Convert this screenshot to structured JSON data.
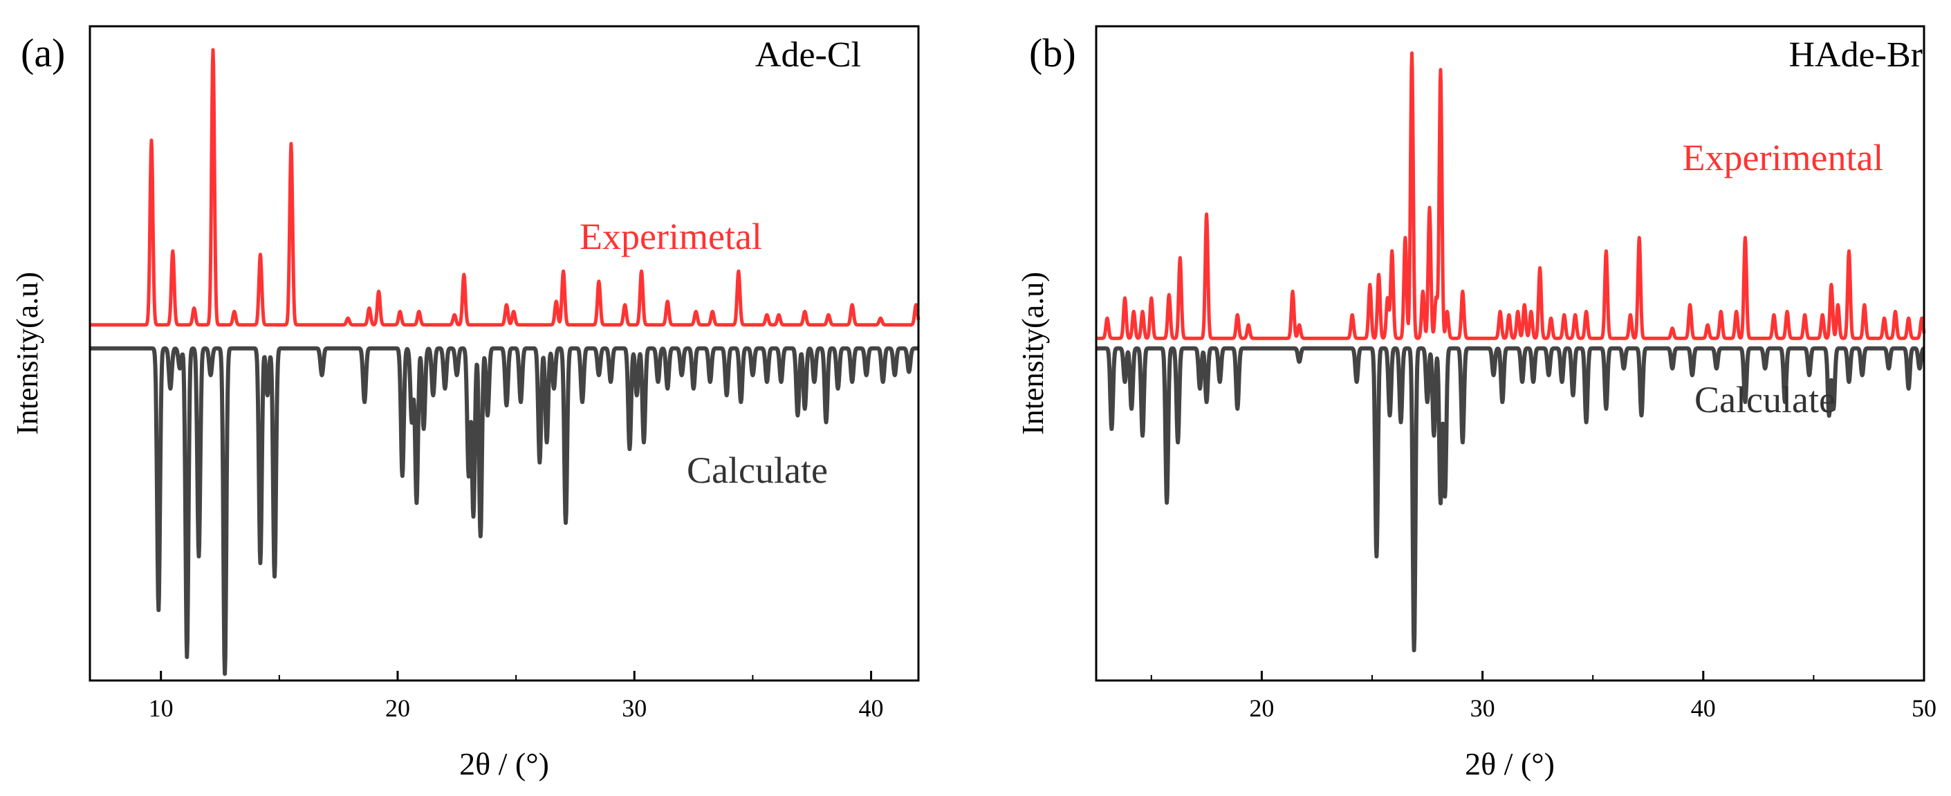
{
  "figure": {
    "panel_count": 2
  },
  "chart_data": [
    {
      "panel_label": "(a)",
      "type": "line",
      "title": "Ade-Cl",
      "xlabel": "2θ / (°)",
      "ylabel": "Intensity(a.u)",
      "xlim": [
        7,
        42
      ],
      "xticks": [
        10,
        20,
        30,
        40
      ],
      "ylim": [
        -1.0,
        0.95
      ],
      "series": [
        {
          "name": "Experimetal",
          "color": "#ff3333",
          "baseline": 0.06,
          "peaks": [
            [
              9.6,
              0.55
            ],
            [
              10.5,
              0.22
            ],
            [
              11.4,
              0.05
            ],
            [
              12.2,
              0.82
            ],
            [
              13.1,
              0.04
            ],
            [
              14.2,
              0.21
            ],
            [
              15.5,
              0.54
            ],
            [
              17.9,
              0.02
            ],
            [
              18.8,
              0.05
            ],
            [
              19.2,
              0.1
            ],
            [
              20.1,
              0.04
            ],
            [
              20.9,
              0.04
            ],
            [
              22.4,
              0.03
            ],
            [
              22.8,
              0.15
            ],
            [
              24.6,
              0.06
            ],
            [
              24.9,
              0.04
            ],
            [
              26.7,
              0.07
            ],
            [
              27.0,
              0.16
            ],
            [
              28.5,
              0.13
            ],
            [
              29.6,
              0.06
            ],
            [
              30.3,
              0.16
            ],
            [
              31.4,
              0.07
            ],
            [
              32.6,
              0.04
            ],
            [
              33.3,
              0.04
            ],
            [
              34.4,
              0.16
            ],
            [
              35.6,
              0.03
            ],
            [
              36.1,
              0.03
            ],
            [
              37.2,
              0.04
            ],
            [
              38.2,
              0.03
            ],
            [
              39.2,
              0.06
            ],
            [
              40.4,
              0.02
            ],
            [
              41.9,
              0.06
            ]
          ]
        },
        {
          "name": "Calculate",
          "color": "#444444",
          "baseline": -0.01,
          "peaks": [
            [
              9.9,
              -0.78
            ],
            [
              10.4,
              -0.12
            ],
            [
              10.8,
              -0.06
            ],
            [
              11.1,
              -0.92
            ],
            [
              11.6,
              -0.62
            ],
            [
              12.1,
              -0.08
            ],
            [
              12.7,
              -0.97
            ],
            [
              14.2,
              -0.64
            ],
            [
              14.5,
              -0.14
            ],
            [
              14.8,
              -0.68
            ],
            [
              16.8,
              -0.08
            ],
            [
              18.6,
              -0.16
            ],
            [
              20.2,
              -0.38
            ],
            [
              20.6,
              -0.22
            ],
            [
              20.8,
              -0.46
            ],
            [
              21.1,
              -0.24
            ],
            [
              21.5,
              -0.14
            ],
            [
              22.0,
              -0.12
            ],
            [
              22.5,
              -0.08
            ],
            [
              23.0,
              -0.38
            ],
            [
              23.2,
              -0.5
            ],
            [
              23.5,
              -0.56
            ],
            [
              23.8,
              -0.2
            ],
            [
              24.6,
              -0.17
            ],
            [
              25.2,
              -0.16
            ],
            [
              26.0,
              -0.34
            ],
            [
              26.3,
              -0.28
            ],
            [
              26.6,
              -0.12
            ],
            [
              27.1,
              -0.52
            ],
            [
              27.8,
              -0.16
            ],
            [
              28.5,
              -0.08
            ],
            [
              29.0,
              -0.1
            ],
            [
              29.8,
              -0.3
            ],
            [
              30.1,
              -0.14
            ],
            [
              30.4,
              -0.28
            ],
            [
              31.0,
              -0.1
            ],
            [
              31.4,
              -0.12
            ],
            [
              32.0,
              -0.08
            ],
            [
              32.5,
              -0.12
            ],
            [
              33.2,
              -0.1
            ],
            [
              33.9,
              -0.14
            ],
            [
              34.5,
              -0.16
            ],
            [
              35.0,
              -0.08
            ],
            [
              35.6,
              -0.1
            ],
            [
              36.2,
              -0.1
            ],
            [
              36.9,
              -0.2
            ],
            [
              37.2,
              -0.18
            ],
            [
              37.6,
              -0.1
            ],
            [
              38.1,
              -0.22
            ],
            [
              38.6,
              -0.12
            ],
            [
              39.2,
              -0.1
            ],
            [
              39.8,
              -0.08
            ],
            [
              40.5,
              -0.1
            ],
            [
              41.0,
              -0.08
            ],
            [
              41.6,
              -0.07
            ]
          ]
        }
      ],
      "series_labels": [
        "Experimetal",
        "Calculate"
      ]
    },
    {
      "panel_label": "(b)",
      "type": "line",
      "title": "HAde-Br",
      "xlabel": "2θ / (°)",
      "ylabel": "Intensity(a.u)",
      "xlim": [
        12.5,
        50
      ],
      "xticks": [
        20,
        30,
        40,
        50
      ],
      "ylim": [
        -1.0,
        0.95
      ],
      "series": [
        {
          "name": "Experimental",
          "color": "#ff3333",
          "baseline": 0.02,
          "peaks": [
            [
              13.0,
              0.06
            ],
            [
              13.8,
              0.12
            ],
            [
              14.2,
              0.08
            ],
            [
              14.6,
              0.08
            ],
            [
              15.0,
              0.12
            ],
            [
              15.8,
              0.13
            ],
            [
              16.3,
              0.24
            ],
            [
              17.5,
              0.37
            ],
            [
              18.9,
              0.07
            ],
            [
              19.4,
              0.04
            ],
            [
              21.4,
              0.14
            ],
            [
              21.7,
              0.04
            ],
            [
              24.1,
              0.07
            ],
            [
              24.9,
              0.16
            ],
            [
              25.3,
              0.19
            ],
            [
              25.7,
              0.12
            ],
            [
              25.9,
              0.26
            ],
            [
              26.5,
              0.3
            ],
            [
              26.8,
              0.85
            ],
            [
              27.3,
              0.14
            ],
            [
              27.6,
              0.39
            ],
            [
              27.9,
              0.12
            ],
            [
              28.1,
              0.8
            ],
            [
              28.4,
              0.08
            ],
            [
              29.1,
              0.14
            ],
            [
              30.8,
              0.08
            ],
            [
              31.2,
              0.07
            ],
            [
              31.6,
              0.08
            ],
            [
              31.9,
              0.1
            ],
            [
              32.2,
              0.08
            ],
            [
              32.6,
              0.21
            ],
            [
              33.1,
              0.06
            ],
            [
              33.7,
              0.07
            ],
            [
              34.2,
              0.07
            ],
            [
              34.7,
              0.08
            ],
            [
              35.6,
              0.26
            ],
            [
              36.7,
              0.07
            ],
            [
              37.1,
              0.3
            ],
            [
              38.6,
              0.03
            ],
            [
              39.4,
              0.1
            ],
            [
              40.2,
              0.04
            ],
            [
              40.8,
              0.08
            ],
            [
              41.5,
              0.08
            ],
            [
              41.9,
              0.3
            ],
            [
              43.2,
              0.07
            ],
            [
              43.8,
              0.08
            ],
            [
              44.6,
              0.07
            ],
            [
              45.4,
              0.07
            ],
            [
              45.8,
              0.16
            ],
            [
              46.1,
              0.1
            ],
            [
              46.6,
              0.26
            ],
            [
              47.3,
              0.1
            ],
            [
              48.2,
              0.06
            ],
            [
              48.7,
              0.08
            ],
            [
              49.3,
              0.06
            ],
            [
              49.9,
              0.06
            ]
          ]
        },
        {
          "name": "Calculate",
          "color": "#444444",
          "baseline": -0.01,
          "peaks": [
            [
              13.2,
              -0.24
            ],
            [
              13.8,
              -0.1
            ],
            [
              14.1,
              -0.18
            ],
            [
              14.6,
              -0.26
            ],
            [
              15.7,
              -0.46
            ],
            [
              16.2,
              -0.28
            ],
            [
              17.2,
              -0.12
            ],
            [
              17.5,
              -0.16
            ],
            [
              18.1,
              -0.1
            ],
            [
              18.9,
              -0.18
            ],
            [
              21.7,
              -0.04
            ],
            [
              24.3,
              -0.1
            ],
            [
              25.2,
              -0.62
            ],
            [
              25.8,
              -0.2
            ],
            [
              26.3,
              -0.22
            ],
            [
              26.9,
              -0.9
            ],
            [
              27.5,
              -0.16
            ],
            [
              27.8,
              -0.26
            ],
            [
              28.1,
              -0.46
            ],
            [
              28.3,
              -0.44
            ],
            [
              29.1,
              -0.28
            ],
            [
              30.5,
              -0.08
            ],
            [
              30.9,
              -0.16
            ],
            [
              31.8,
              -0.1
            ],
            [
              32.3,
              -0.1
            ],
            [
              33.0,
              -0.08
            ],
            [
              33.6,
              -0.1
            ],
            [
              34.1,
              -0.14
            ],
            [
              34.7,
              -0.22
            ],
            [
              35.6,
              -0.18
            ],
            [
              36.4,
              -0.06
            ],
            [
              37.2,
              -0.2
            ],
            [
              38.6,
              -0.06
            ],
            [
              39.5,
              -0.08
            ],
            [
              40.6,
              -0.06
            ],
            [
              41.9,
              -0.16
            ],
            [
              42.8,
              -0.06
            ],
            [
              43.7,
              -0.16
            ],
            [
              44.8,
              -0.08
            ],
            [
              45.7,
              -0.2
            ],
            [
              45.9,
              -0.18
            ],
            [
              46.6,
              -0.1
            ],
            [
              47.2,
              -0.08
            ],
            [
              48.4,
              -0.06
            ],
            [
              49.3,
              -0.12
            ],
            [
              49.8,
              -0.06
            ]
          ]
        }
      ],
      "series_labels": [
        "Experimental",
        "Calculate"
      ]
    }
  ]
}
